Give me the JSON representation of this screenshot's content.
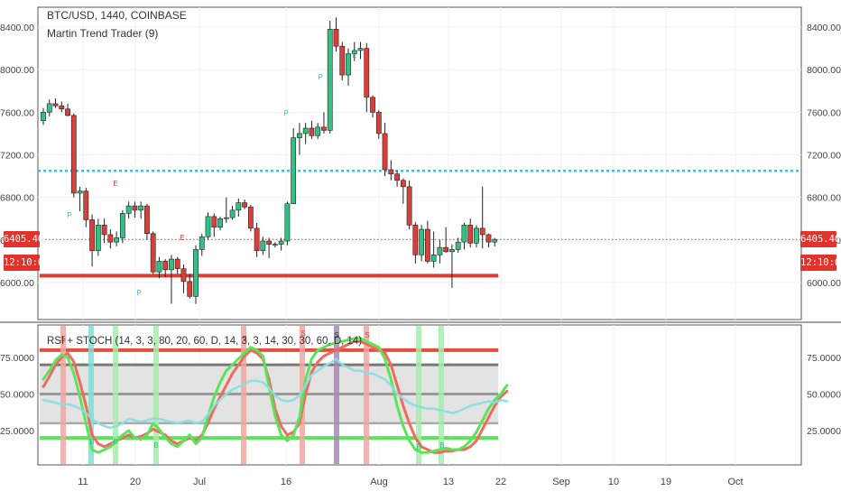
{
  "header": {
    "symbol": "BTC/USD, 1440, COINBASE",
    "indicator": "Martin Trend Trader (9)"
  },
  "subpane": {
    "label": "RSI + STOCH (14, 3, 3, 80, 20, 60, D, 14, 3, 3, 14, 30, 30, 60, D, 14)"
  },
  "price_scale": {
    "left_tag_price": "6405.40",
    "left_tag_time": "12:10:09",
    "right_tag_price": "6405.40",
    "right_tag_time": "12:10:09"
  },
  "colors": {
    "up": "#32c184",
    "down": "#d9403a",
    "cyan_line": "#4fb6d6",
    "red_support": "#e23b33",
    "signal_up": "#3ab8e0",
    "rsi_red": "#ef6b5c",
    "stoch_green": "#5de35a",
    "rsi_blue": "#87dfe0"
  },
  "chart_data": [
    {
      "type": "candlestick",
      "title": "BTC/USD, 1440, COINBASE",
      "y_ticks": [
        "8400.00",
        "8000.00",
        "7600.00",
        "7200.00",
        "6800.00",
        "6400.00",
        "6000.00"
      ],
      "x_ticks": [
        "11",
        "20",
        "Jul",
        "16",
        "Aug",
        "13",
        "22",
        "Sep",
        "10",
        "19",
        "Oct"
      ],
      "ylim": [
        5750,
        8620
      ],
      "horizontal_lines": [
        7050,
        6065
      ],
      "last_price": 6405.4,
      "ohlc": [
        [
          7520,
          7640,
          7480,
          7600
        ],
        [
          7600,
          7720,
          7560,
          7680
        ],
        [
          7680,
          7730,
          7640,
          7660
        ],
        [
          7660,
          7700,
          7600,
          7630
        ],
        [
          7630,
          7680,
          7560,
          7570
        ],
        [
          7570,
          7590,
          6800,
          6840
        ],
        [
          6840,
          6900,
          6670,
          6860
        ],
        [
          6860,
          6890,
          6520,
          6590
        ],
        [
          6590,
          6640,
          6150,
          6300
        ],
        [
          6300,
          6600,
          6250,
          6540
        ],
        [
          6540,
          6600,
          6370,
          6450
        ],
        [
          6450,
          6500,
          6320,
          6380
        ],
        [
          6380,
          6480,
          6340,
          6420
        ],
        [
          6420,
          6680,
          6370,
          6650
        ],
        [
          6650,
          6760,
          6600,
          6720
        ],
        [
          6720,
          6760,
          6610,
          6680
        ],
        [
          6680,
          6760,
          6600,
          6720
        ],
        [
          6720,
          6740,
          6400,
          6460
        ],
        [
          6460,
          6480,
          6080,
          6100
        ],
        [
          6100,
          6240,
          6040,
          6200
        ],
        [
          6200,
          6220,
          6050,
          6120
        ],
        [
          6120,
          6260,
          5800,
          6220
        ],
        [
          6220,
          6240,
          6080,
          6130
        ],
        [
          6130,
          6170,
          5900,
          6010
        ],
        [
          6010,
          6080,
          5850,
          5870
        ],
        [
          5870,
          6350,
          5800,
          6310
        ],
        [
          6310,
          6460,
          6250,
          6430
        ],
        [
          6430,
          6660,
          6400,
          6620
        ],
        [
          6620,
          6650,
          6430,
          6520
        ],
        [
          6520,
          6620,
          6490,
          6600
        ],
        [
          6600,
          6800,
          6560,
          6610
        ],
        [
          6610,
          6720,
          6590,
          6680
        ],
        [
          6680,
          6790,
          6620,
          6750
        ],
        [
          6750,
          6780,
          6690,
          6710
        ],
        [
          6710,
          6730,
          6480,
          6510
        ],
        [
          6510,
          6560,
          6240,
          6300
        ],
        [
          6300,
          6430,
          6260,
          6390
        ],
        [
          6390,
          6420,
          6230,
          6360
        ],
        [
          6360,
          6380,
          6330,
          6360
        ],
        [
          6360,
          6420,
          6300,
          6390
        ],
        [
          6390,
          6760,
          6350,
          6740
        ],
        [
          6740,
          7450,
          6740,
          7360
        ],
        [
          7360,
          7500,
          7200,
          7400
        ],
        [
          7400,
          7500,
          7300,
          7450
        ],
        [
          7450,
          7520,
          7350,
          7380
        ],
        [
          7380,
          7500,
          7350,
          7460
        ],
        [
          7460,
          7600,
          7400,
          7430
        ],
        [
          7430,
          8460,
          7400,
          8380
        ],
        [
          8380,
          8490,
          8170,
          8220
        ],
        [
          8220,
          8260,
          7900,
          7950
        ],
        [
          7950,
          8200,
          7850,
          8150
        ],
        [
          8150,
          8260,
          8080,
          8180
        ],
        [
          8180,
          8260,
          8100,
          8200
        ],
        [
          8200,
          8250,
          7600,
          7740
        ],
        [
          7740,
          7760,
          7550,
          7600
        ],
        [
          7600,
          7620,
          7350,
          7400
        ],
        [
          7400,
          7500,
          7000,
          7060
        ],
        [
          7060,
          7150,
          6960,
          7020
        ],
        [
          7020,
          7050,
          6900,
          6960
        ],
        [
          6960,
          6980,
          6740,
          6900
        ],
        [
          6900,
          6960,
          6500,
          6540
        ],
        [
          6540,
          6570,
          6180,
          6260
        ],
        [
          6260,
          6540,
          6200,
          6500
        ],
        [
          6500,
          6580,
          6180,
          6200
        ],
        [
          6200,
          6480,
          6140,
          6260
        ],
        [
          6260,
          6400,
          6180,
          6330
        ],
        [
          6330,
          6520,
          6280,
          6290
        ],
        [
          6290,
          6360,
          5950,
          6310
        ],
        [
          6310,
          6420,
          6280,
          6380
        ],
        [
          6380,
          6560,
          6310,
          6540
        ],
        [
          6540,
          6600,
          6330,
          6370
        ],
        [
          6370,
          6540,
          6330,
          6510
        ],
        [
          6510,
          6900,
          6320,
          6450
        ],
        [
          6450,
          6460,
          6330,
          6380
        ],
        [
          6380,
          6420,
          6340,
          6405
        ]
      ]
    },
    {
      "type": "line",
      "title": "RSI + STOCH (14, 3, 3, 80, 20, 60, D, 14, 3, 3, 14, 30, 30, 60, D, 14)",
      "y_ticks": [
        "75.0000",
        "50.0000",
        "25.0000"
      ],
      "ylim": [
        0,
        100
      ],
      "levels": [
        80,
        70,
        50,
        30,
        20
      ],
      "series": [
        {
          "color": "#ef6b5c",
          "values": [
            55,
            62,
            70,
            75,
            78,
            72,
            58,
            42,
            22,
            16,
            14,
            16,
            18,
            20,
            22,
            20,
            21,
            23,
            26,
            24,
            22,
            18,
            16,
            18,
            20,
            18,
            22,
            30,
            40,
            48,
            56,
            64,
            70,
            76,
            80,
            78,
            74,
            60,
            40,
            28,
            22,
            24,
            30,
            50,
            65,
            72,
            76,
            78,
            80,
            82,
            84,
            86,
            86,
            84,
            82,
            80,
            78,
            70,
            56,
            42,
            30,
            20,
            14,
            12,
            10,
            10,
            11,
            11,
            12,
            12,
            14,
            18,
            26,
            34,
            42,
            48,
            52
          ]
        },
        {
          "color": "#5de35a",
          "values": [
            60,
            66,
            73,
            77,
            75,
            64,
            48,
            30,
            12,
            10,
            12,
            14,
            18,
            22,
            25,
            20,
            19,
            22,
            30,
            26,
            20,
            16,
            14,
            18,
            22,
            16,
            20,
            35,
            48,
            58,
            66,
            70,
            74,
            78,
            82,
            80,
            76,
            55,
            35,
            22,
            18,
            22,
            34,
            60,
            74,
            80,
            82,
            84,
            85,
            86,
            87,
            88,
            88,
            86,
            84,
            82,
            74,
            60,
            42,
            28,
            18,
            12,
            10,
            10,
            11,
            12,
            13,
            12,
            12,
            14,
            18,
            24,
            32,
            40,
            46,
            50,
            56
          ]
        },
        {
          "color": "#87dfe0",
          "values": [
            46,
            45,
            44,
            43,
            43,
            42,
            40,
            37,
            33,
            30,
            28,
            27,
            28,
            30,
            33,
            32,
            31,
            32,
            33,
            33,
            32,
            31,
            30,
            31,
            32,
            30,
            31,
            36,
            42,
            46,
            50,
            53,
            55,
            57,
            59,
            59,
            58,
            54,
            49,
            46,
            45,
            46,
            49,
            56,
            63,
            66,
            69,
            71,
            74,
            70,
            68,
            66,
            66,
            64,
            64,
            62,
            60,
            56,
            50,
            47,
            44,
            42,
            41,
            40,
            40,
            39,
            38,
            37,
            38,
            40,
            42,
            43,
            44,
            45,
            44,
            46,
            45
          ]
        }
      ]
    }
  ]
}
